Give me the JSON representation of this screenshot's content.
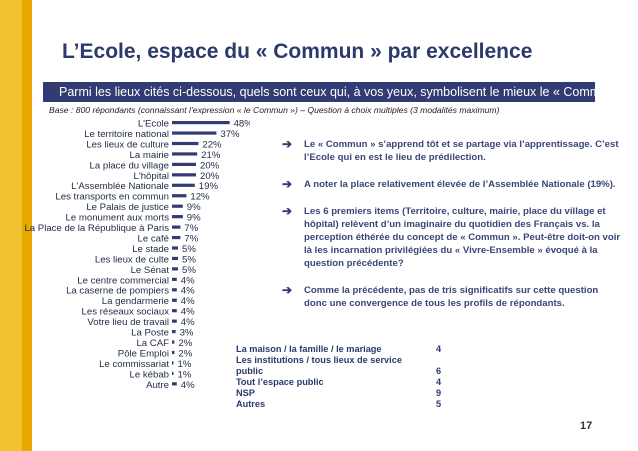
{
  "title": "L’Ecole, espace  du « Commun » par excellence",
  "question": "Parmi les lieux cités ci-dessous, quels sont ceux qui, à vos yeux, symbolisent le mieux le « Commun » ?",
  "base": "Base : 800 répondants (connaissant l’expression « le Commun ») – Question à choix multiples (3 modalités maximum)",
  "colors": {
    "bar": "#333b73",
    "accent_yellow": "#f2c230",
    "header_band": "#333b73"
  },
  "chart_data": {
    "type": "bar",
    "orientation": "horizontal",
    "categories": [
      "L'Ecole",
      "Le territoire national",
      "Les lieux de culture",
      "La mairie",
      "La place du village",
      "L'hôpital",
      "L'Assemblée Nationale",
      "Les transports en commun",
      "Le Palais de justice",
      "Le monument aux morts",
      "La Place de la République à Paris",
      "Le café",
      "Le stade",
      "Les lieux de culte",
      "Le Sénat",
      "Le centre commercial",
      "La caserne de pompiers",
      "La gendarmerie",
      "Les réseaux sociaux",
      "Votre lieu de travail",
      "La Poste",
      "La CAF",
      "Pôle Emploi",
      "Le commissariat",
      "Le kébab",
      "Autre"
    ],
    "values": [
      48,
      37,
      22,
      21,
      20,
      20,
      19,
      12,
      9,
      9,
      7,
      7,
      5,
      5,
      5,
      4,
      4,
      4,
      4,
      4,
      3,
      2,
      2,
      1,
      1,
      4
    ],
    "value_labels": [
      "48%",
      "37%",
      "22%",
      "21%",
      "20%",
      "20%",
      "19%",
      "12%",
      "9%",
      "9%",
      "7%",
      "7%",
      "5%",
      "5%",
      "5%",
      "4%",
      "4%",
      "4%",
      "4%",
      "4%",
      "3%",
      "2%",
      "2%",
      "1%",
      "1%",
      "4%"
    ],
    "unit": "%",
    "xlim": [
      0,
      50
    ]
  },
  "bullets": [
    {
      "icon": "arrow-right-icon",
      "text": "Le « Commun » s’apprend tôt et se partage via l’apprentissage. C’est l’Ecole qui en est le lieu de prédilection."
    },
    {
      "icon": "arrow-right-icon",
      "text": "A noter la place relativement élevée de l’Assemblée Nationale (19%)."
    },
    {
      "icon": "arrow-right-icon",
      "text": "Les 6 premiers items (Territoire, culture, mairie, place du village et hôpital) relèvent d’un imaginaire du quotidien des Français vs. la perception éthérée du concept de « Commun ». Peut-être doit-on voir là les incarnation privilégiées du « Vivre-Ensemble » évoqué à la question précédente?"
    },
    {
      "icon": "arrow-right-icon",
      "text": "Comme la précédente, pas de tris significatifs sur cette question donc une convergence de tous les profils de répondants."
    }
  ],
  "other_table": [
    {
      "label": "La maison / la famille / le mariage",
      "value": "4"
    },
    {
      "label": "Les institutions / tous lieux de service public",
      "value": "6"
    },
    {
      "label": "Tout l’espace public",
      "value": "4"
    },
    {
      "label": "NSP",
      "value": "9"
    },
    {
      "label": "Autres",
      "value": "5"
    }
  ],
  "page_number": "17"
}
